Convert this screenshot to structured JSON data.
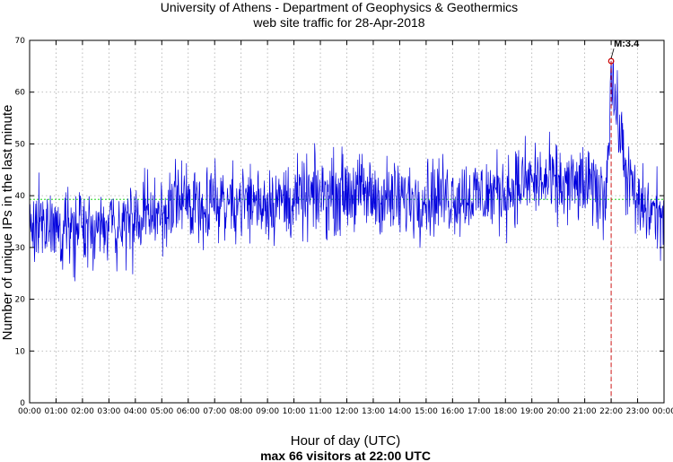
{
  "chart_data": {
    "type": "line",
    "title": [
      "University of Athens - Department of Geophysics & Geothermics",
      "web site traffic for 28-Apr-2018"
    ],
    "xlabel": "Hour of day (UTC)",
    "ylabel": "Number of unique IPs in the last minute",
    "caption": "max 66 visitors at 22:00 UTC",
    "x_unit": "hour",
    "xlim": [
      0,
      24
    ],
    "ylim": [
      0,
      70
    ],
    "x_ticks": [
      0,
      1,
      2,
      3,
      4,
      5,
      6,
      7,
      8,
      9,
      10,
      11,
      12,
      13,
      14,
      15,
      16,
      17,
      18,
      19,
      20,
      21,
      22,
      23,
      24
    ],
    "x_tick_labels": [
      "00:00",
      "01:00",
      "02:00",
      "03:00",
      "04:00",
      "05:00",
      "06:00",
      "07:00",
      "08:00",
      "09:00",
      "10:00",
      "11:00",
      "12:00",
      "13:00",
      "14:00",
      "15:00",
      "16:00",
      "17:00",
      "18:00",
      "19:00",
      "20:00",
      "21:00",
      "22:00",
      "23:00",
      "00:00"
    ],
    "y_ticks": [
      0,
      10,
      20,
      30,
      40,
      50,
      60,
      70
    ],
    "y_tick_labels": [
      "0",
      "10",
      "20",
      "30",
      "40",
      "50",
      "60",
      "70"
    ],
    "grid": true,
    "average_line": {
      "value": 39.3,
      "color": "#00cc00"
    },
    "max_marker": {
      "x": 22.0,
      "y": 66,
      "label": "M:3.4",
      "color": "#cc0000"
    },
    "series": [
      {
        "color": "#0000dd",
        "sample_interval_minutes": 1,
        "hourly_trend": [
          {
            "x": 0,
            "y": 35
          },
          {
            "x": 1,
            "y": 34
          },
          {
            "x": 2,
            "y": 33
          },
          {
            "x": 3,
            "y": 34
          },
          {
            "x": 4,
            "y": 35
          },
          {
            "x": 5,
            "y": 37
          },
          {
            "x": 6,
            "y": 39
          },
          {
            "x": 7,
            "y": 39
          },
          {
            "x": 8,
            "y": 39
          },
          {
            "x": 9,
            "y": 39
          },
          {
            "x": 10,
            "y": 39
          },
          {
            "x": 11,
            "y": 40
          },
          {
            "x": 12,
            "y": 41
          },
          {
            "x": 13,
            "y": 40
          },
          {
            "x": 14,
            "y": 39
          },
          {
            "x": 15,
            "y": 40
          },
          {
            "x": 16,
            "y": 40
          },
          {
            "x": 17,
            "y": 40
          },
          {
            "x": 18,
            "y": 41
          },
          {
            "x": 19,
            "y": 43
          },
          {
            "x": 20,
            "y": 42
          },
          {
            "x": 21,
            "y": 42
          },
          {
            "x": 21.8,
            "y": 40
          },
          {
            "x": 22.0,
            "y": 64
          },
          {
            "x": 22.2,
            "y": 56
          },
          {
            "x": 22.6,
            "y": 44
          },
          {
            "x": 23,
            "y": 38
          },
          {
            "x": 24,
            "y": 36
          }
        ]
      }
    ]
  },
  "colors": {
    "series": "#0000dd",
    "average": "#00cc00",
    "max_marker": "#cc0000",
    "grid": "#aaaaaa"
  }
}
